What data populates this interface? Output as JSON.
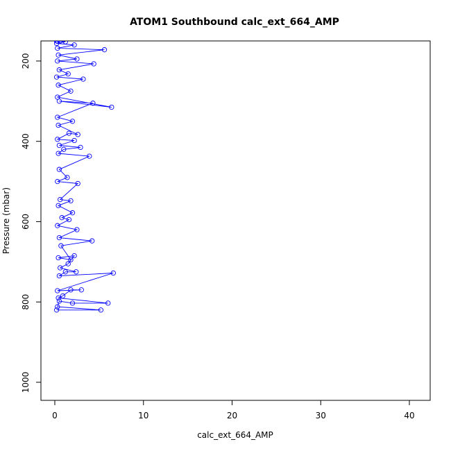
{
  "chart_data": {
    "type": "line",
    "title": "ATOM1 Southbound calc_ext_664_AMP",
    "xlabel": "calc_ext_664_AMP",
    "ylabel": "Pressure (mbar)",
    "xlim": [
      0,
      42
    ],
    "ylim": [
      1045,
      150
    ],
    "y_reversed": true,
    "x_ticks": [
      0,
      10,
      20,
      30,
      40
    ],
    "y_ticks": [
      200,
      400,
      600,
      800,
      1000
    ],
    "grid": false,
    "marker": "open-circle",
    "series_color": "#0000ff",
    "series": [
      {
        "points": [
          [
            0.2,
            820
          ],
          [
            5.2,
            820
          ],
          [
            0.3,
            812
          ],
          [
            0.5,
            798
          ],
          [
            2.0,
            803
          ],
          [
            6.0,
            803
          ],
          [
            0.4,
            790
          ],
          [
            0.9,
            785
          ],
          [
            1.8,
            770
          ],
          [
            3.0,
            770
          ],
          [
            0.3,
            772
          ],
          [
            6.6,
            728
          ],
          [
            0.5,
            735
          ],
          [
            1.2,
            725
          ],
          [
            2.4,
            725
          ],
          [
            0.6,
            715
          ],
          [
            1.5,
            705
          ],
          [
            2.2,
            685
          ],
          [
            0.4,
            690
          ],
          [
            1.8,
            695
          ],
          [
            0.7,
            660
          ],
          [
            4.2,
            648
          ],
          [
            0.5,
            640
          ],
          [
            2.5,
            620
          ],
          [
            0.3,
            610
          ],
          [
            1.6,
            595
          ],
          [
            0.8,
            590
          ],
          [
            2.0,
            578
          ],
          [
            0.4,
            560
          ],
          [
            1.8,
            548
          ],
          [
            0.6,
            545
          ],
          [
            2.6,
            505
          ],
          [
            0.3,
            500
          ],
          [
            1.4,
            490
          ],
          [
            0.5,
            470
          ],
          [
            3.9,
            437
          ],
          [
            0.4,
            430
          ],
          [
            1.0,
            420
          ],
          [
            2.9,
            415
          ],
          [
            0.5,
            410
          ],
          [
            2.2,
            398
          ],
          [
            0.3,
            395
          ],
          [
            1.6,
            380
          ],
          [
            2.6,
            383
          ],
          [
            0.4,
            360
          ],
          [
            2.0,
            350
          ],
          [
            0.3,
            340
          ],
          [
            4.3,
            305
          ],
          [
            0.5,
            300
          ],
          [
            6.4,
            315
          ],
          [
            0.3,
            290
          ],
          [
            1.8,
            275
          ],
          [
            0.4,
            260
          ],
          [
            3.2,
            245
          ],
          [
            0.2,
            240
          ],
          [
            1.5,
            232
          ],
          [
            0.5,
            222
          ],
          [
            4.4,
            207
          ],
          [
            0.3,
            200
          ],
          [
            2.5,
            195
          ],
          [
            0.4,
            185
          ],
          [
            5.6,
            172
          ],
          [
            0.3,
            168
          ],
          [
            2.2,
            160
          ],
          [
            0.2,
            156
          ],
          [
            1.2,
            152
          ],
          [
            0.3,
            150
          ],
          [
            0.6,
            150
          ],
          [
            0.2,
            150
          ]
        ]
      }
    ]
  }
}
